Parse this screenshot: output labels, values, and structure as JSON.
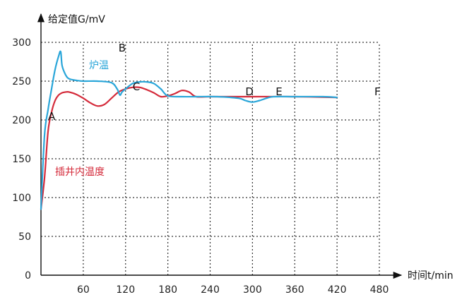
{
  "chart_data": {
    "type": "line",
    "xlabel": "时间t/min",
    "ylabel": "给定值G/mV",
    "xlim": [
      0,
      480
    ],
    "ylim": [
      0,
      300
    ],
    "x_ticks": [
      60,
      120,
      180,
      240,
      300,
      360,
      420,
      480
    ],
    "y_ticks": [
      0,
      50,
      100,
      150,
      200,
      250,
      300
    ],
    "grid": true,
    "series": [
      {
        "name": "炉温",
        "color": "#2aa6d9",
        "x": [
          0,
          5,
          10,
          15,
          20,
          25,
          28,
          30,
          35,
          40,
          50,
          60,
          80,
          100,
          108,
          112,
          115,
          120,
          130,
          140,
          150,
          160,
          170,
          180,
          200,
          220,
          250,
          280,
          290,
          300,
          310,
          320,
          330,
          360,
          400,
          420
        ],
        "y": [
          85,
          180,
          213,
          240,
          265,
          282,
          288,
          270,
          258,
          253,
          251,
          250,
          250,
          248,
          240,
          232,
          236,
          240,
          247,
          249,
          249,
          247,
          240,
          231,
          230,
          230,
          230,
          228,
          225,
          223,
          225,
          228,
          230,
          230,
          230,
          229
        ]
      },
      {
        "name": "插井内温度",
        "color": "#d42a3a",
        "x": [
          0,
          5,
          10,
          15,
          20,
          25,
          30,
          35,
          40,
          50,
          60,
          70,
          80,
          90,
          100,
          110,
          120,
          130,
          140,
          150,
          160,
          170,
          180,
          190,
          200,
          210,
          220,
          240,
          300,
          360,
          420
        ],
        "y": [
          85,
          125,
          185,
          210,
          225,
          232,
          235,
          236,
          236,
          233,
          228,
          222,
          218,
          220,
          228,
          236,
          240,
          242,
          242,
          239,
          235,
          230,
          231,
          234,
          238,
          236,
          230,
          230,
          230,
          230,
          229
        ]
      }
    ],
    "point_labels": [
      {
        "label": "A",
        "x": 10,
        "y": 200
      },
      {
        "label": "B",
        "x": 110,
        "y": 288
      },
      {
        "label": "C",
        "x": 130,
        "y": 238
      },
      {
        "label": "D",
        "x": 290,
        "y": 232
      },
      {
        "label": "E",
        "x": 333,
        "y": 232
      },
      {
        "label": "F",
        "x": 473,
        "y": 232
      }
    ]
  }
}
